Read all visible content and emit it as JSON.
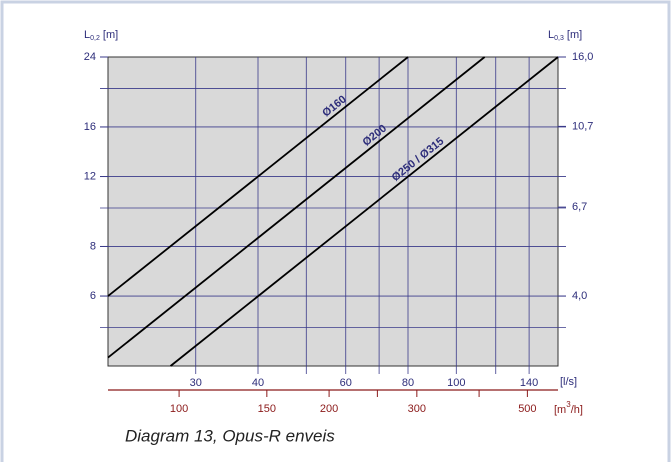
{
  "chart_data": {
    "type": "line",
    "log_x": true,
    "log_y": true,
    "y_label": {
      "main": "L",
      "sub": "0,2",
      "unit": " [m]"
    },
    "y2_label": {
      "main": "L",
      "sub": "0,3",
      "unit": " [m]"
    },
    "x_unit": "[l/s]",
    "x2_unit": {
      "main": "[m",
      "sup": "3",
      "rest": "/h]"
    },
    "caption": "Diagram 13, Opus-R enveis",
    "xlim": [
      20,
      160
    ],
    "xticks": [
      30,
      40,
      60,
      80,
      100,
      140
    ],
    "xgrid": [
      30,
      40,
      50,
      60,
      70,
      80,
      100,
      120,
      140
    ],
    "x2lim": [
      72,
      576
    ],
    "x2ticks": [
      100,
      150,
      200,
      300,
      500
    ],
    "x2minor": [
      250,
      400
    ],
    "ylim": [
      4,
      24
    ],
    "yticks": [
      6,
      8,
      12,
      16,
      24
    ],
    "ygrid": [
      5,
      6,
      8,
      10,
      12,
      16,
      20
    ],
    "y2lim": [
      2.667,
      16
    ],
    "y2ticks": [
      {
        "value": 4.0,
        "label": "4,0"
      },
      {
        "value": 6.7,
        "label": "6,7"
      },
      {
        "value": 10.7,
        "label": "10,7"
      },
      {
        "value": 16.0,
        "label": "16,0"
      }
    ],
    "grid": true,
    "series": [
      {
        "name": "Ø160",
        "color": "#000000",
        "x": [
          20,
          80
        ],
        "values": [
          6,
          24
        ]
      },
      {
        "name": "Ø200",
        "color": "#000000",
        "x": [
          20,
          114
        ],
        "values": [
          4.2,
          24
        ]
      },
      {
        "name": "Ø250 / Ø315",
        "color": "#000000",
        "x": [
          26.7,
          160
        ],
        "values": [
          4,
          24
        ]
      }
    ]
  }
}
